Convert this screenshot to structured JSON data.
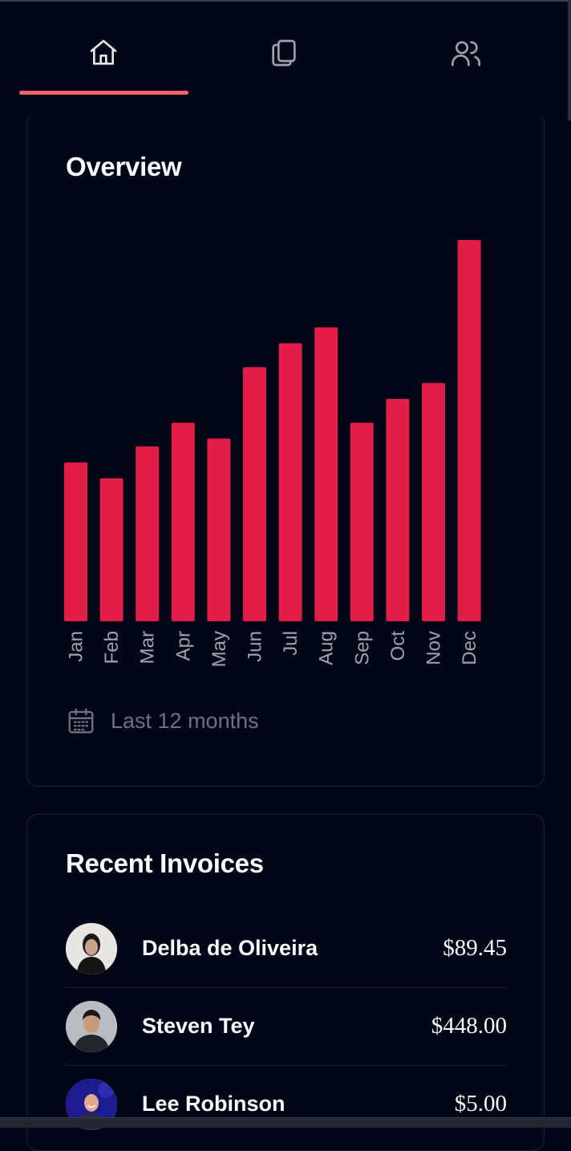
{
  "tabs": [
    {
      "id": "home",
      "icon": "home-icon",
      "active": true
    },
    {
      "id": "documents",
      "icon": "documents-icon",
      "active": false
    },
    {
      "id": "users",
      "icon": "users-icon",
      "active": false
    }
  ],
  "overview": {
    "title": "Overview",
    "period_label": "Last 12 months"
  },
  "chart_data": {
    "type": "bar",
    "categories": [
      "Jan",
      "Feb",
      "Mar",
      "Apr",
      "May",
      "Jun",
      "Jul",
      "Aug",
      "Sep",
      "Oct",
      "Nov",
      "Dec"
    ],
    "values": [
      200,
      180,
      220,
      250,
      230,
      320,
      350,
      370,
      250,
      280,
      300,
      480
    ],
    "ylim": [
      0,
      480
    ],
    "title": "",
    "xlabel": "",
    "ylabel": "",
    "grid": false,
    "color": "#e11d48"
  },
  "recent_invoices": {
    "title": "Recent Invoices",
    "items": [
      {
        "name": "Delba de Oliveira",
        "amount": "$89.45"
      },
      {
        "name": "Steven Tey",
        "amount": "$448.00"
      },
      {
        "name": "Lee Robinson",
        "amount": "$5.00"
      }
    ]
  },
  "colors": {
    "background": "#030616",
    "accent": "#e11d48",
    "tab_underline": "#f0636a"
  }
}
